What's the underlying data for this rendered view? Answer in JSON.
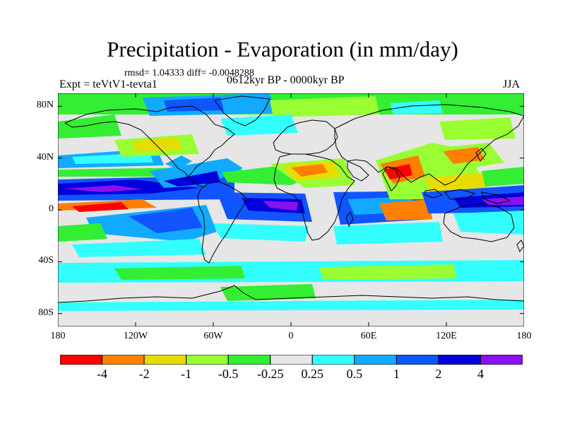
{
  "title": "Precipitation - Evaporation (in mm/day)",
  "stats": "rmsd= 1.04333 diff= -0.0048288",
  "experiment": "Expt = teVtV1-tevta1",
  "period": "0612kyr BP - 0000kyr BP",
  "season": "JJA",
  "map": {
    "lon_range": [
      -180,
      180
    ],
    "lat_range": [
      -90,
      90
    ],
    "lat_ticks": [
      {
        "lat": 80,
        "label": "80N"
      },
      {
        "lat": 40,
        "label": "40N"
      },
      {
        "lat": 0,
        "label": "0"
      },
      {
        "lat": -40,
        "label": "40S"
      },
      {
        "lat": -80,
        "label": "80S"
      }
    ],
    "lon_ticks": [
      {
        "lon": -180,
        "label": "180"
      },
      {
        "lon": -120,
        "label": "120W"
      },
      {
        "lon": -60,
        "label": "60W"
      },
      {
        "lon": 0,
        "label": "0"
      },
      {
        "lon": 60,
        "label": "60E"
      },
      {
        "lon": 120,
        "label": "120E"
      },
      {
        "lon": 180,
        "label": "180"
      }
    ],
    "background_color": "#e6e6e6"
  },
  "colorbar": {
    "colors": [
      "#ff0000",
      "#ff8000",
      "#e6dc00",
      "#99ff33",
      "#33ee33",
      "#e6e6e6",
      "#33ffff",
      "#11aaff",
      "#1155ff",
      "#0000dd",
      "#8811ee"
    ],
    "labels": [
      "-4",
      "-2",
      "-1",
      "-0.5",
      "-0.25",
      "0.25",
      "0.5",
      "1",
      "2",
      "4"
    ]
  }
}
